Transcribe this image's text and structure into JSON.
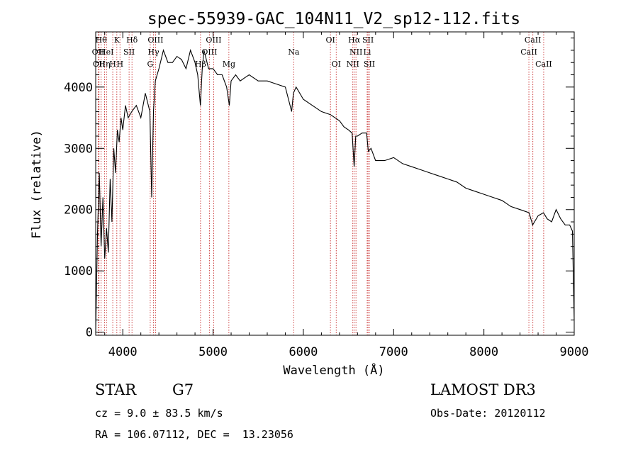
{
  "chart_data": {
    "type": "line",
    "title": "spec-55939-GAC_104N11_V2_sp12-112.fits",
    "xlabel": "Wavelength (Å)",
    "ylabel": "Flux (relative)",
    "xlim": [
      3700,
      9000
    ],
    "ylim": [
      -50,
      4900
    ],
    "xticks": [
      4000,
      5000,
      6000,
      7000,
      8000,
      9000
    ],
    "yticks": [
      0,
      1000,
      2000,
      3000,
      4000
    ],
    "grid": false,
    "series": [
      {
        "x": [
          3700,
          3720,
          3740,
          3760,
          3780,
          3800,
          3820,
          3840,
          3860,
          3880,
          3900,
          3920,
          3940,
          3960,
          3980,
          4000,
          4030,
          4060,
          4100,
          4150,
          4200,
          4250,
          4300,
          4320,
          4340,
          4360,
          4400,
          4450,
          4500,
          4550,
          4600,
          4650,
          4700,
          4750,
          4800,
          4830,
          4860,
          4880,
          4900,
          4950,
          5000,
          5050,
          5100,
          5150,
          5180,
          5200,
          5250,
          5300,
          5350,
          5400,
          5500,
          5600,
          5700,
          5800,
          5870,
          5890,
          5920,
          6000,
          6100,
          6200,
          6300,
          6350,
          6400,
          6450,
          6500,
          6540,
          6563,
          6580,
          6600,
          6650,
          6700,
          6720,
          6750,
          6800,
          6900,
          7000,
          7100,
          7200,
          7300,
          7400,
          7500,
          7600,
          7700,
          7800,
          7900,
          8000,
          8100,
          8200,
          8300,
          8400,
          8500,
          8540,
          8600,
          8660,
          8700,
          8750,
          8800,
          8850,
          8900,
          8950,
          8980,
          9000
        ],
        "y": [
          0,
          1600,
          2600,
          1400,
          2200,
          1200,
          1700,
          1300,
          2500,
          1800,
          3000,
          2600,
          3300,
          3100,
          3500,
          3300,
          3700,
          3500,
          3600,
          3700,
          3500,
          3900,
          3600,
          2200,
          3600,
          4100,
          4300,
          4600,
          4400,
          4400,
          4500,
          4450,
          4300,
          4600,
          4400,
          4200,
          3700,
          4300,
          4600,
          4300,
          4300,
          4200,
          4200,
          4000,
          3700,
          4100,
          4200,
          4100,
          4150,
          4200,
          4100,
          4100,
          4050,
          4000,
          3600,
          3900,
          4000,
          3800,
          3700,
          3600,
          3550,
          3500,
          3450,
          3350,
          3300,
          3250,
          2700,
          3200,
          3200,
          3250,
          3250,
          2950,
          3000,
          2800,
          2800,
          2850,
          2750,
          2700,
          2650,
          2600,
          2550,
          2500,
          2450,
          2350,
          2300,
          2250,
          2200,
          2150,
          2050,
          2000,
          1950,
          1750,
          1900,
          1950,
          1850,
          1800,
          2000,
          1850,
          1750,
          1750,
          1650,
          200
        ]
      }
    ],
    "line_markers": [
      {
        "x": 3727,
        "label": "OII",
        "row": 1
      },
      {
        "x": 3737,
        "label": "OII",
        "row": 2
      },
      {
        "x": 3760,
        "label": "Hθ",
        "row": 0
      },
      {
        "x": 3798,
        "label": "Hη",
        "row": 2
      },
      {
        "x": 3820,
        "label": "HeI",
        "row": 1
      },
      {
        "x": 3889,
        "label": "H",
        "row": 2
      },
      {
        "x": 3934,
        "label": "K",
        "row": 0
      },
      {
        "x": 3969,
        "label": "H",
        "row": 2
      },
      {
        "x": 4070,
        "label": "SII",
        "row": 1
      },
      {
        "x": 4102,
        "label": "Hδ",
        "row": 0
      },
      {
        "x": 4304,
        "label": "G",
        "row": 2
      },
      {
        "x": 4340,
        "label": "Hγ",
        "row": 1
      },
      {
        "x": 4363,
        "label": "OIII",
        "row": 0
      },
      {
        "x": 4861,
        "label": "Hβ",
        "row": 2
      },
      {
        "x": 4959,
        "label": "OIII",
        "row": 1
      },
      {
        "x": 5007,
        "label": "OIII",
        "row": 0
      },
      {
        "x": 5175,
        "label": "Mg",
        "row": 2
      },
      {
        "x": 5893,
        "label": "Na",
        "row": 1
      },
      {
        "x": 6300,
        "label": "OI",
        "row": 0
      },
      {
        "x": 6364,
        "label": "OI",
        "row": 2
      },
      {
        "x": 6548,
        "label": "NII",
        "row": 2
      },
      {
        "x": 6563,
        "label": "Hα",
        "row": 0
      },
      {
        "x": 6583,
        "label": "NII",
        "row": 1
      },
      {
        "x": 6707,
        "label": "Li",
        "row": 1
      },
      {
        "x": 6716,
        "label": "SII",
        "row": 0
      },
      {
        "x": 6731,
        "label": "SII",
        "row": 2
      },
      {
        "x": 8498,
        "label": "CaII",
        "row": 1
      },
      {
        "x": 8542,
        "label": "CaII",
        "row": 0
      },
      {
        "x": 8662,
        "label": "CaII",
        "row": 2
      }
    ]
  },
  "info": {
    "class": "STAR",
    "subclass": "G7",
    "survey": "LAMOST DR3",
    "cz": "cz = 9.0 ± 83.5 km/s",
    "obs_date": "Obs-Date: 20120112",
    "radec": "RA = 106.07112, DEC =  13.23056"
  }
}
